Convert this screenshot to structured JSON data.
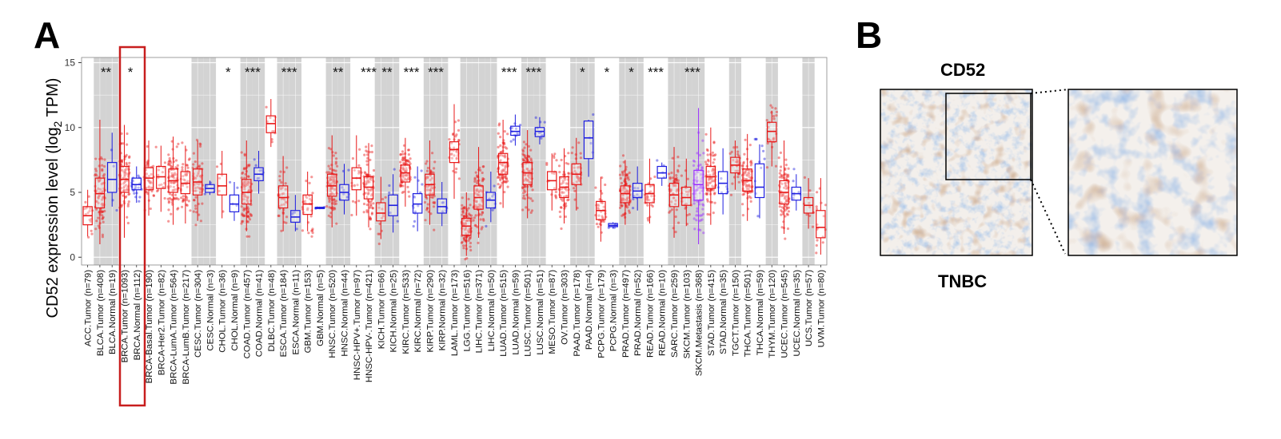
{
  "panel_a_label": "A",
  "panel_b_label": "B",
  "stain_title": "CD52",
  "tissue_label": "TNBC",
  "colors": {
    "tumor": "#e81818",
    "normal": "#1f1fe0",
    "metastasis": "#9b30ff",
    "shade": "#d3d3d3",
    "highlight": "#c81e1e"
  },
  "chart_data": {
    "type": "box",
    "ylabel_prefix": "CD52 expression level (log",
    "ylabel_sub": "2",
    "ylabel_suffix": " TPM)",
    "ylim": [
      -0.6,
      15.4
    ],
    "yticks": [
      "0",
      "5",
      "10",
      "15"
    ],
    "highlight_groups": [
      "BRCA.Tumor (n=1093)",
      "BRCA.Normal (n=112)"
    ],
    "categories": [
      {
        "label": "ACC.Tumor (n=79)",
        "kind": "tumor",
        "shade": false,
        "q1": 2.5,
        "med": 3.2,
        "q3": 3.9,
        "lo": 1.6,
        "hi": 5.2
      },
      {
        "label": "BLCA.Tumor (n=408)",
        "kind": "tumor",
        "shade": true,
        "q1": 3.8,
        "med": 4.9,
        "q3": 6.1,
        "lo": 1.0,
        "hi": 10.6
      },
      {
        "label": "BLCA.Normal (n=19)",
        "kind": "normal",
        "shade": true,
        "q1": 5.0,
        "med": 6.0,
        "q3": 7.3,
        "lo": 3.9,
        "hi": 9.6,
        "sig": "**"
      },
      {
        "label": "BRCA.Tumor (n=1093)",
        "kind": "tumor",
        "shade": false,
        "q1": 5.0,
        "med": 6.0,
        "q3": 7.0,
        "lo": 1.5,
        "hi": 10.2
      },
      {
        "label": "BRCA.Normal (n=112)",
        "kind": "normal",
        "shade": false,
        "q1": 5.2,
        "med": 5.6,
        "q3": 6.1,
        "lo": 4.2,
        "hi": 7.0,
        "sig": "*"
      },
      {
        "label": "BRCA-Basal.Tumor (n=190)",
        "kind": "tumor",
        "shade": false,
        "q1": 5.2,
        "med": 6.1,
        "q3": 6.9,
        "lo": 3.2,
        "hi": 9.0
      },
      {
        "label": "BRCA-Her2.Tumor (n=82)",
        "kind": "tumor",
        "shade": false,
        "q1": 5.3,
        "med": 6.2,
        "q3": 7.0,
        "lo": 3.5,
        "hi": 8.6
      },
      {
        "label": "BRCA-LumA.Tumor (n=564)",
        "kind": "tumor",
        "shade": false,
        "q1": 5.0,
        "med": 5.9,
        "q3": 6.8,
        "lo": 2.5,
        "hi": 9.3
      },
      {
        "label": "BRCA-LumB.Tumor (n=217)",
        "kind": "tumor",
        "shade": false,
        "q1": 4.9,
        "med": 5.7,
        "q3": 6.6,
        "lo": 2.6,
        "hi": 8.6
      },
      {
        "label": "CESC.Tumor (n=304)",
        "kind": "tumor",
        "shade": true,
        "q1": 4.8,
        "med": 5.8,
        "q3": 6.8,
        "lo": 2.8,
        "hi": 9.0
      },
      {
        "label": "CESC.Normal (n=3)",
        "kind": "normal",
        "shade": true,
        "q1": 5.0,
        "med": 5.3,
        "q3": 5.6,
        "lo": 4.8,
        "hi": 5.9
      },
      {
        "label": "CHOL.Tumor (n=36)",
        "kind": "tumor",
        "shade": false,
        "q1": 4.8,
        "med": 5.5,
        "q3": 6.4,
        "lo": 3.0,
        "hi": 8.2
      },
      {
        "label": "CHOL.Normal (n=9)",
        "kind": "normal",
        "shade": false,
        "q1": 3.5,
        "med": 4.1,
        "q3": 4.8,
        "lo": 2.8,
        "hi": 5.8,
        "sig": "*"
      },
      {
        "label": "COAD.Tumor (n=457)",
        "kind": "tumor",
        "shade": true,
        "q1": 4.1,
        "med": 5.0,
        "q3": 6.0,
        "lo": 2.0,
        "hi": 9.0
      },
      {
        "label": "COAD.Normal (n=41)",
        "kind": "normal",
        "shade": true,
        "q1": 5.9,
        "med": 6.4,
        "q3": 6.9,
        "lo": 4.9,
        "hi": 8.2,
        "sig": "***"
      },
      {
        "label": "DLBC.Tumor (n=48)",
        "kind": "tumor",
        "shade": false,
        "q1": 9.6,
        "med": 10.3,
        "q3": 10.9,
        "lo": 8.5,
        "hi": 12.2
      },
      {
        "label": "ESCA.Tumor (n=184)",
        "kind": "tumor",
        "shade": true,
        "q1": 3.8,
        "med": 4.6,
        "q3": 5.5,
        "lo": 2.0,
        "hi": 7.8
      },
      {
        "label": "ESCA.Normal (n=11)",
        "kind": "normal",
        "shade": true,
        "q1": 2.7,
        "med": 3.1,
        "q3": 3.6,
        "lo": 2.0,
        "hi": 4.8,
        "sig": "***"
      },
      {
        "label": "GBM.Tumor (n=153)",
        "kind": "tumor",
        "shade": false,
        "q1": 3.3,
        "med": 4.1,
        "q3": 4.8,
        "lo": 2.0,
        "hi": 6.6
      },
      {
        "label": "GBM.Normal (n=5)",
        "kind": "normal",
        "shade": false,
        "q1": 3.75,
        "med": 3.8,
        "q3": 3.85,
        "lo": 3.7,
        "hi": 3.9
      },
      {
        "label": "HNSC.Tumor (n=520)",
        "kind": "tumor",
        "shade": true,
        "q1": 4.7,
        "med": 5.5,
        "q3": 6.4,
        "lo": 2.3,
        "hi": 9.4
      },
      {
        "label": "HNSC.Normal (n=44)",
        "kind": "normal",
        "shade": true,
        "q1": 4.4,
        "med": 5.0,
        "q3": 5.6,
        "lo": 3.3,
        "hi": 7.2,
        "sig": "**"
      },
      {
        "label": "HNSC-HPV+.Tumor (n=97)",
        "kind": "tumor",
        "shade": false,
        "q1": 5.2,
        "med": 6.1,
        "q3": 6.9,
        "lo": 3.2,
        "hi": 9.4
      },
      {
        "label": "HNSC-HPV-.Tumor (n=421)",
        "kind": "tumor",
        "shade": false,
        "q1": 4.5,
        "med": 5.4,
        "q3": 6.2,
        "lo": 2.3,
        "hi": 8.8,
        "sig": "***"
      },
      {
        "label": "KICH.Tumor (n=66)",
        "kind": "tumor",
        "shade": true,
        "q1": 2.8,
        "med": 3.4,
        "q3": 4.2,
        "lo": 1.4,
        "hi": 6.2
      },
      {
        "label": "KICH.Normal (n=25)",
        "kind": "normal",
        "shade": true,
        "q1": 3.2,
        "med": 4.0,
        "q3": 4.8,
        "lo": 1.9,
        "hi": 6.4,
        "sig": "**"
      },
      {
        "label": "KIRC.Tumor (n=533)",
        "kind": "tumor",
        "shade": false,
        "q1": 5.8,
        "med": 6.5,
        "q3": 7.1,
        "lo": 3.9,
        "hi": 9.2
      },
      {
        "label": "KIRC.Normal (n=72)",
        "kind": "normal",
        "shade": false,
        "q1": 3.4,
        "med": 4.1,
        "q3": 4.9,
        "lo": 2.0,
        "hi": 7.0,
        "sig": "***"
      },
      {
        "label": "KIRP.Tumor (n=290)",
        "kind": "tumor",
        "shade": true,
        "q1": 4.8,
        "med": 5.6,
        "q3": 6.4,
        "lo": 2.5,
        "hi": 9.0
      },
      {
        "label": "KIRP.Normal (n=32)",
        "kind": "normal",
        "shade": true,
        "q1": 3.4,
        "med": 3.9,
        "q3": 4.5,
        "lo": 2.4,
        "hi": 5.8,
        "sig": "***"
      },
      {
        "label": "LAML.Tumor (n=173)",
        "kind": "tumor",
        "shade": false,
        "q1": 7.3,
        "med": 8.3,
        "q3": 8.9,
        "lo": 4.5,
        "hi": 11.8
      },
      {
        "label": "LGG.Tumor (n=516)",
        "kind": "tumor",
        "shade": true,
        "q1": 1.7,
        "med": 2.4,
        "q3": 3.0,
        "lo": 0.1,
        "hi": 5.0
      },
      {
        "label": "LIHC.Tumor (n=371)",
        "kind": "tumor",
        "shade": true,
        "q1": 3.7,
        "med": 4.6,
        "q3": 5.5,
        "lo": 1.5,
        "hi": 8.5
      },
      {
        "label": "LIHC.Normal (n=50)",
        "kind": "normal",
        "shade": true,
        "q1": 3.8,
        "med": 4.4,
        "q3": 5.0,
        "lo": 2.7,
        "hi": 6.6
      },
      {
        "label": "LUAD.Tumor (n=515)",
        "kind": "tumor",
        "shade": false,
        "q1": 6.4,
        "med": 7.3,
        "q3": 8.0,
        "lo": 3.8,
        "hi": 10.6
      },
      {
        "label": "LUAD.Normal (n=59)",
        "kind": "normal",
        "shade": false,
        "q1": 9.4,
        "med": 9.7,
        "q3": 10.1,
        "lo": 8.6,
        "hi": 11.0,
        "sig": "***"
      },
      {
        "label": "LUSC.Tumor (n=501)",
        "kind": "tumor",
        "shade": true,
        "q1": 5.6,
        "med": 6.5,
        "q3": 7.3,
        "lo": 3.0,
        "hi": 9.8
      },
      {
        "label": "LUSC.Normal (n=51)",
        "kind": "normal",
        "shade": true,
        "q1": 9.3,
        "med": 9.7,
        "q3": 10.0,
        "lo": 8.7,
        "hi": 10.8,
        "sig": "***"
      },
      {
        "label": "MESO.Tumor (n=87)",
        "kind": "tumor",
        "shade": false,
        "q1": 5.2,
        "med": 5.9,
        "q3": 6.6,
        "lo": 3.6,
        "hi": 8.0
      },
      {
        "label": "OV.Tumor (n=303)",
        "kind": "tumor",
        "shade": false,
        "q1": 4.6,
        "med": 5.4,
        "q3": 6.2,
        "lo": 2.6,
        "hi": 8.4
      },
      {
        "label": "PAAD.Tumor (n=178)",
        "kind": "tumor",
        "shade": true,
        "q1": 5.6,
        "med": 6.4,
        "q3": 7.2,
        "lo": 3.6,
        "hi": 9.2
      },
      {
        "label": "PAAD.Normal (n=4)",
        "kind": "normal",
        "shade": true,
        "q1": 7.6,
        "med": 9.2,
        "q3": 10.5,
        "lo": 6.2,
        "hi": 10.6,
        "sig": "*"
      },
      {
        "label": "PCPG.Tumor (n=179)",
        "kind": "tumor",
        "shade": false,
        "q1": 2.9,
        "med": 3.6,
        "q3": 4.3,
        "lo": 1.2,
        "hi": 6.2
      },
      {
        "label": "PCPG.Normal (n=3)",
        "kind": "normal",
        "shade": false,
        "q1": 2.35,
        "med": 2.45,
        "q3": 2.6,
        "lo": 2.2,
        "hi": 2.7,
        "sig": "*"
      },
      {
        "label": "PRAD.Tumor (n=497)",
        "kind": "tumor",
        "shade": true,
        "q1": 4.2,
        "med": 4.9,
        "q3": 5.5,
        "lo": 2.5,
        "hi": 7.5
      },
      {
        "label": "PRAD.Normal (n=52)",
        "kind": "normal",
        "shade": true,
        "q1": 4.6,
        "med": 5.1,
        "q3": 5.7,
        "lo": 3.6,
        "hi": 7.0,
        "sig": "*"
      },
      {
        "label": "READ.Tumor (n=166)",
        "kind": "tumor",
        "shade": false,
        "q1": 4.2,
        "med": 4.9,
        "q3": 5.6,
        "lo": 2.6,
        "hi": 7.6
      },
      {
        "label": "READ.Normal (n=10)",
        "kind": "normal",
        "shade": false,
        "q1": 6.1,
        "med": 6.5,
        "q3": 7.0,
        "lo": 5.5,
        "hi": 7.3,
        "sig": "***"
      },
      {
        "label": "SARC.Tumor (n=259)",
        "kind": "tumor",
        "shade": true,
        "q1": 3.9,
        "med": 4.8,
        "q3": 5.7,
        "lo": 1.5,
        "hi": 8.5
      },
      {
        "label": "SKCM.Tumor (n=103)",
        "kind": "tumor",
        "shade": true,
        "q1": 4.0,
        "med": 4.6,
        "q3": 5.4,
        "lo": 2.4,
        "hi": 7.6
      },
      {
        "label": "SKCM.Metastasis (n=368)",
        "kind": "metastasis",
        "shade": true,
        "q1": 4.4,
        "med": 5.6,
        "q3": 6.7,
        "lo": 1.0,
        "hi": 11.5,
        "sig": "***"
      },
      {
        "label": "STAD.Tumor (n=415)",
        "kind": "tumor",
        "shade": false,
        "q1": 5.3,
        "med": 6.2,
        "q3": 7.0,
        "lo": 2.5,
        "hi": 10.0
      },
      {
        "label": "STAD.Normal (n=35)",
        "kind": "normal",
        "shade": false,
        "q1": 4.9,
        "med": 5.7,
        "q3": 6.6,
        "lo": 3.3,
        "hi": 8.4
      },
      {
        "label": "TGCT.Tumor (n=150)",
        "kind": "tumor",
        "shade": true,
        "q1": 6.5,
        "med": 7.1,
        "q3": 7.7,
        "lo": 5.2,
        "hi": 9.0
      },
      {
        "label": "THCA.Tumor (n=501)",
        "kind": "tumor",
        "shade": false,
        "q1": 5.1,
        "med": 5.9,
        "q3": 6.8,
        "lo": 2.8,
        "hi": 9.5
      },
      {
        "label": "THCA.Normal (n=59)",
        "kind": "normal",
        "shade": false,
        "q1": 4.6,
        "med": 5.4,
        "q3": 7.2,
        "lo": 3.0,
        "hi": 8.7
      },
      {
        "label": "THYM.Tumor (n=120)",
        "kind": "tumor",
        "shade": true,
        "q1": 8.9,
        "med": 9.7,
        "q3": 10.4,
        "lo": 7.0,
        "hi": 11.3
      },
      {
        "label": "UCEC.Tumor (n=545)",
        "kind": "tumor",
        "shade": false,
        "q1": 4.1,
        "med": 5.0,
        "q3": 5.9,
        "lo": 1.8,
        "hi": 9.0
      },
      {
        "label": "UCEC.Normal (n=35)",
        "kind": "normal",
        "shade": false,
        "q1": 4.4,
        "med": 4.9,
        "q3": 5.4,
        "lo": 3.6,
        "hi": 6.4
      },
      {
        "label": "UCS.Tumor (n=57)",
        "kind": "tumor",
        "shade": true,
        "q1": 3.4,
        "med": 4.0,
        "q3": 4.6,
        "lo": 2.2,
        "hi": 6.1
      },
      {
        "label": "UVM.Tumor (n=80)",
        "kind": "tumor",
        "shade": false,
        "q1": 1.5,
        "med": 2.3,
        "q3": 3.6,
        "lo": 0.2,
        "hi": 6.1
      }
    ]
  }
}
